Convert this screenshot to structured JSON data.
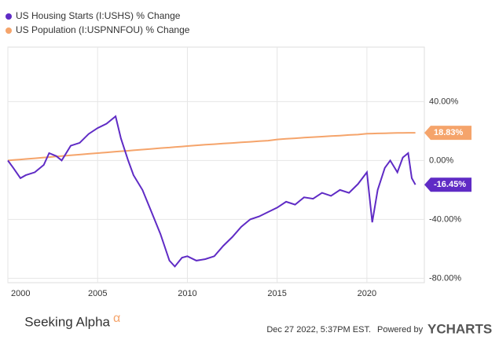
{
  "chart_data": {
    "type": "line",
    "x": [
      2000,
      2000.3,
      2000.7,
      2001,
      2001.5,
      2002,
      2002.3,
      2002.7,
      2003,
      2003.5,
      2004,
      2004.5,
      2005,
      2005.5,
      2006,
      2006.3,
      2006.7,
      2007,
      2007.5,
      2008,
      2008.5,
      2009,
      2009.3,
      2009.7,
      2010,
      2010.5,
      2011,
      2011.5,
      2012,
      2012.5,
      2013,
      2013.5,
      2014,
      2014.5,
      2015,
      2015.5,
      2016,
      2016.5,
      2017,
      2017.5,
      2018,
      2018.5,
      2019,
      2019.5,
      2020,
      2020.3,
      2020.6,
      2021,
      2021.3,
      2021.7,
      2022,
      2022.3,
      2022.5,
      2022.7
    ],
    "series": [
      {
        "name": "US Housing Starts (I:USHS) % Change",
        "color": "#5f2bc5",
        "values": [
          0,
          -5,
          -12,
          -10,
          -8,
          -3,
          5,
          3,
          0,
          10,
          12,
          18,
          22,
          25,
          30,
          15,
          0,
          -10,
          -20,
          -35,
          -50,
          -68,
          -72,
          -66,
          -65,
          -68,
          -67,
          -65,
          -58,
          -52,
          -45,
          -40,
          -38,
          -35,
          -32,
          -28,
          -30,
          -25,
          -26,
          -22,
          -24,
          -20,
          -22,
          -16,
          -8,
          -42,
          -20,
          -5,
          0,
          -8,
          2,
          5,
          -12,
          -16.45
        ],
        "value_labels": [
          null,
          null,
          null,
          null,
          null,
          null,
          null,
          null,
          null,
          null,
          null,
          null,
          null,
          null,
          null,
          null,
          null,
          null,
          null,
          null,
          null,
          null,
          null,
          null,
          null,
          null,
          null,
          null,
          null,
          null,
          null,
          null,
          null,
          null,
          null,
          null,
          null,
          null,
          null,
          null,
          null,
          null,
          null,
          null,
          null,
          null,
          null,
          null,
          null,
          null,
          null,
          null,
          null,
          "-16.45%"
        ]
      },
      {
        "name": "US Population (I:USPNNFOU) % Change",
        "color": "#f5a46b",
        "values": [
          0,
          0.3,
          0.7,
          1,
          1.5,
          2,
          2.3,
          2.7,
          3,
          3.5,
          4,
          4.5,
          5,
          5.5,
          6,
          6.3,
          6.6,
          6.9,
          7.4,
          7.9,
          8.4,
          8.8,
          9.1,
          9.5,
          9.8,
          10.3,
          10.7,
          11.1,
          11.5,
          11.9,
          12.3,
          12.7,
          13.1,
          13.5,
          14.3,
          14.7,
          15.1,
          15.5,
          15.9,
          16.2,
          16.6,
          16.9,
          17.3,
          17.6,
          18.2,
          18.3,
          18.4,
          18.5,
          18.6,
          18.7,
          18.75,
          18.8,
          18.81,
          18.83
        ],
        "value_labels": [
          null,
          null,
          null,
          null,
          null,
          null,
          null,
          null,
          null,
          null,
          null,
          null,
          null,
          null,
          null,
          null,
          null,
          null,
          null,
          null,
          null,
          null,
          null,
          null,
          null,
          null,
          null,
          null,
          null,
          null,
          null,
          null,
          null,
          null,
          null,
          null,
          null,
          null,
          null,
          null,
          null,
          null,
          null,
          null,
          null,
          null,
          null,
          null,
          null,
          null,
          null,
          null,
          null,
          "18.83%"
        ]
      }
    ],
    "xlim": [
      2000,
      2023.2
    ],
    "xticks": [
      2000,
      2005,
      2010,
      2015,
      2020
    ],
    "ylim": [
      -83,
      77
    ],
    "yticks": [
      {
        "value": 40,
        "label": "40.00%"
      },
      {
        "value": 0,
        "label": "0.00%"
      },
      {
        "value": -40,
        "label": "-40.00%"
      },
      {
        "value": -80,
        "label": "-80.00%"
      }
    ],
    "grid": true,
    "watermark": "Seeking Alpha",
    "watermark_symbol": "α",
    "timestamp": "Dec 27 2022, 5:37PM EST.",
    "powered_by": "Powered by",
    "brand": "YCHARTS"
  }
}
